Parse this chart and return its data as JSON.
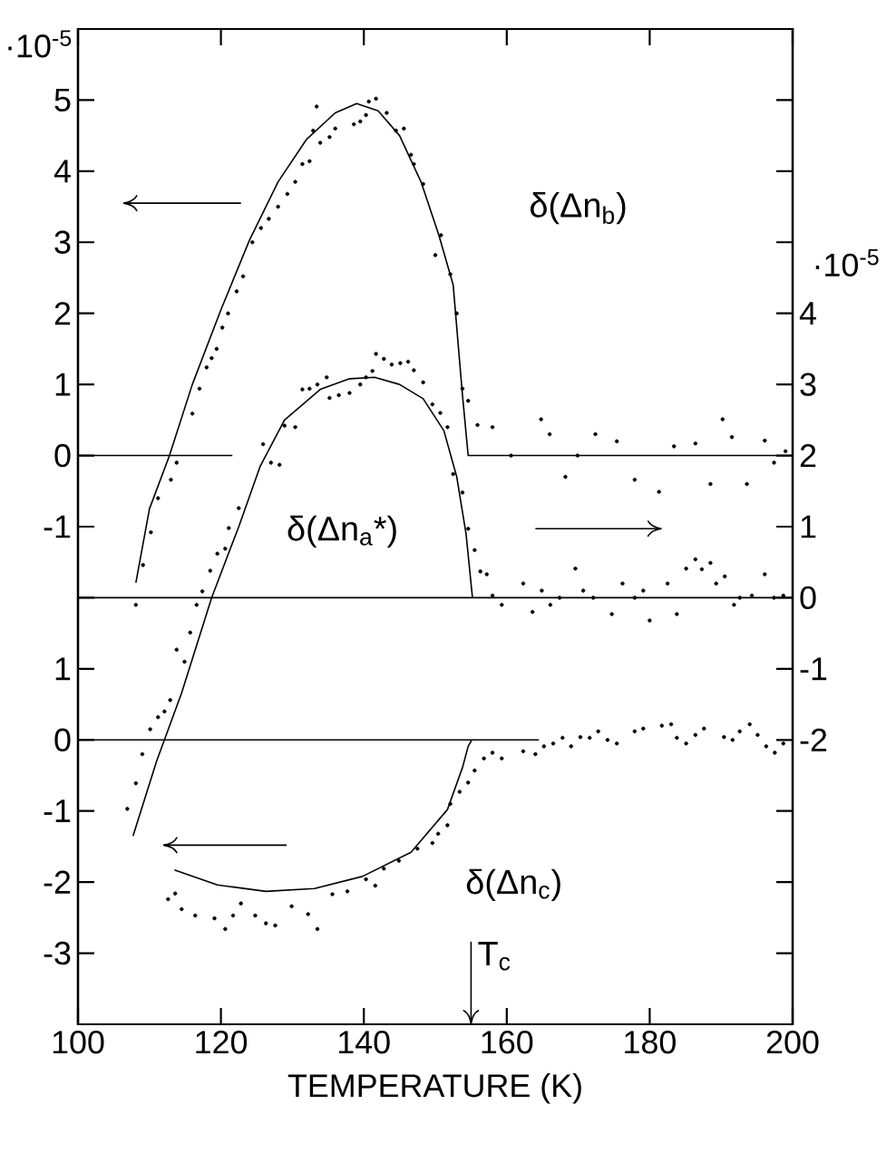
{
  "chart_data": [
    {
      "type": "line",
      "xlim": [
        100,
        200
      ],
      "ylim": [
        -8,
        6
      ],
      "yticks": [
        5,
        4,
        3,
        2,
        1,
        0,
        -1
      ],
      "ylabel": "·10$^{-5}$",
      "tick_labels": "y",
      "annotations": [
        "δ(Δn$_{b}$)"
      ],
      "series": [
        {
          "type": "scatter",
          "color": "#000000",
          "x": [
            108.1,
            109.1,
            110.2,
            111.2,
            113.0,
            113.8,
            116.0,
            117.0,
            118.0,
            118.7,
            119.4,
            120.2,
            121.0,
            122.2,
            123.1,
            124.4,
            125.6,
            126.7,
            128.0,
            129.3,
            130.4,
            131.4,
            132.4,
            132.9,
            133.4,
            133.9,
            135.2,
            136.0,
            138.6,
            139.5,
            140.3,
            140.7,
            141.7,
            143.2,
            144.5,
            145.6,
            146.6,
            147.0,
            148.3,
            150.0,
            150.8,
            152.1,
            153.0,
            153.8,
            154.6,
            155.9,
            158.0,
            160.6,
            164.8,
            166.0,
            168.2,
            169.9,
            172.4,
            175.4,
            177.9,
            181.3,
            183.4,
            186.4,
            188.5,
            190.2,
            191.5,
            193.6,
            196.1,
            197.4,
            199.0
          ],
          "values": [
            -2.1,
            -1.54,
            -1.08,
            -0.6,
            -0.34,
            -0.1,
            0.59,
            0.94,
            1.24,
            1.37,
            1.5,
            1.8,
            2.0,
            2.31,
            2.52,
            3.0,
            3.2,
            3.33,
            3.5,
            3.68,
            3.85,
            4.1,
            4.14,
            4.57,
            4.91,
            4.4,
            4.48,
            4.6,
            4.66,
            4.7,
            4.79,
            4.98,
            5.02,
            4.82,
            4.57,
            4.6,
            4.23,
            4.1,
            3.82,
            2.82,
            3.1,
            2.55,
            2.0,
            0.94,
            0.77,
            0.43,
            0.4,
            0,
            0.51,
            0.3,
            -0.3,
            0,
            0.3,
            0.2,
            -0.34,
            -0.51,
            0.13,
            0.17,
            -0.4,
            0.51,
            0.26,
            -0.4,
            0.21,
            -0.1,
            0.06
          ]
        },
        {
          "color": "#000000",
          "x": [
            108.1,
            110,
            112.8,
            116,
            120,
            124,
            128,
            132,
            136,
            139,
            142,
            145,
            148,
            150.5,
            152.5,
            153.8,
            154.6,
            200
          ],
          "values": [
            -1.79,
            -0.75,
            0,
            1.0,
            2.05,
            3.03,
            3.85,
            4.45,
            4.82,
            4.95,
            4.85,
            4.5,
            3.85,
            3.1,
            2.4,
            0.85,
            0,
            0
          ]
        },
        {
          "color": "#000000",
          "x": [
            100,
            121.6
          ],
          "values": [
            0,
            0
          ]
        }
      ]
    },
    {
      "type": "line",
      "xlim": [
        100,
        200
      ],
      "y2lim": [
        -6,
        8
      ],
      "y2ticks": [
        {
          "value": 7,
          "label": null
        },
        {
          "value": 6,
          "label": null
        },
        {
          "value": 5,
          "label": null
        },
        4,
        3,
        2,
        1,
        0,
        -1,
        -2,
        {
          "value": -3,
          "label": null
        },
        {
          "value": -4,
          "label": null
        },
        {
          "value": -5,
          "label": null
        }
      ],
      "y2label": "·10$^{-5}$",
      "tick_labels": "y",
      "annotations": [
        "δ(Δn$_{a}$*)"
      ],
      "series": [
        {
          "type": "scatter",
          "color": "#000000",
          "axis": "y2",
          "x": [
            106.9,
            108.1,
            109.0,
            110.1,
            111.2,
            112.1,
            112.9,
            113.8,
            114.9,
            115.7,
            116.6,
            117.4,
            118.5,
            119.5,
            120.6,
            121.1,
            122.5,
            125.9,
            127.0,
            128.2,
            128.9,
            130.4,
            131.4,
            132.4,
            133.5,
            134.8,
            135.2,
            136.5,
            138.0,
            139.5,
            140.3,
            141.2,
            141.7,
            142.8,
            143.9,
            145.1,
            146.2,
            147.0,
            148.3,
            149.6,
            150.7,
            151.7,
            152.5,
            153.8,
            154.6,
            155.5,
            156.3,
            157.2,
            158.0,
            159.3,
            162.3,
            163.6,
            164.9,
            166.1,
            167.4,
            169.6,
            170.7,
            172.1,
            174.7,
            176.2,
            177.9,
            179.1,
            180.0,
            182.5,
            183.8,
            185.1,
            186.4,
            187.3,
            188.5,
            189.3,
            190.5,
            191.8,
            192.6,
            194.3,
            196.1,
            197.4,
            198.7
          ],
          "values": [
            -2.97,
            -2.61,
            -2.2,
            -1.85,
            -1.68,
            -1.6,
            -1.44,
            -0.73,
            -0.9,
            -0.49,
            -0.1,
            0.09,
            0.38,
            0.62,
            0.69,
            0.98,
            1.26,
            2.16,
            1.9,
            1.87,
            2.42,
            2.4,
            2.93,
            2.94,
            3.0,
            3.1,
            2.81,
            2.85,
            2.88,
            3.0,
            3.1,
            3.19,
            3.43,
            3.36,
            3.28,
            3.3,
            3.32,
            3.2,
            3.03,
            2.72,
            2.6,
            2.4,
            1.74,
            1.48,
            0.97,
            0.67,
            0.37,
            0.33,
            0.03,
            -0.1,
            0.2,
            -0.2,
            0.1,
            -0.1,
            0,
            0.41,
            0.1,
            0,
            -0.23,
            0.2,
            0,
            0.1,
            -0.32,
            0.2,
            -0.23,
            0.41,
            0.54,
            0.4,
            0.49,
            0.2,
            0.3,
            -0.1,
            0,
            0.03,
            0.33,
            0,
            0.03
          ]
        },
        {
          "color": "#000000",
          "axis": "y2",
          "x": [
            107.7,
            111,
            114.5,
            118.7,
            122.5,
            125.5,
            128.9,
            133.9,
            138,
            141.5,
            145,
            148.3,
            151.2,
            153,
            154.3,
            155.2
          ],
          "values": [
            -3.35,
            -2.3,
            -1.34,
            0,
            1.0,
            1.85,
            2.5,
            2.93,
            3.08,
            3.1,
            3.0,
            2.8,
            2.35,
            1.7,
            0.9,
            0
          ]
        },
        {
          "color": "#000000",
          "axis": "y2",
          "x": [
            100,
            200
          ],
          "values": [
            0,
            0
          ]
        }
      ]
    },
    {
      "type": "line",
      "xlim": [
        100,
        200
      ],
      "xticks": [
        100,
        120,
        140,
        160,
        180,
        200
      ],
      "xlabel": "TEMPERATURE (K)",
      "ylim": [
        -4,
        10
      ],
      "yticks": [
        {
          "value": 2,
          "label": null
        },
        1,
        0,
        -1,
        -2,
        -3
      ],
      "annotations": [
        "δ(Δn$_{c}$)",
        "T$_{c}$"
      ],
      "series": [
        {
          "type": "scatter",
          "color": "#000000",
          "x": [
            112.6,
            113.6,
            114.5,
            116.4,
            119.1,
            120.6,
            121.7,
            122.8,
            124.8,
            126.3,
            127.6,
            129.9,
            132.2,
            133.5,
            135.6,
            137.7,
            140.3,
            141.6,
            142.8,
            144.9,
            147.5,
            149.6,
            150.4,
            151.7,
            152.1,
            153.4,
            154.6,
            155.5,
            156.8,
            158.0,
            159.3,
            162.3,
            164.0,
            165.2,
            166.5,
            167.8,
            169.0,
            170.3,
            171.6,
            172.8,
            174.1,
            175.4,
            177.9,
            179.1,
            181.7,
            183.0,
            183.8,
            185.1,
            186.4,
            187.6,
            190.4,
            191.6,
            192.6,
            194.0,
            195.1,
            196.3,
            197.5,
            198.7
          ],
          "values": [
            -2.24,
            -2.16,
            -2.38,
            -2.47,
            -2.51,
            -2.66,
            -2.47,
            -2.3,
            -2.47,
            -2.58,
            -2.61,
            -2.34,
            -2.45,
            -2.66,
            -2.17,
            -2.13,
            -1.96,
            -2.05,
            -1.81,
            -1.7,
            -1.53,
            -1.45,
            -1.32,
            -1.2,
            -0.9,
            -0.73,
            -0.6,
            -0.43,
            -0.26,
            -0.18,
            -0.26,
            -0.16,
            -0.2,
            -0.09,
            -0.05,
            0.03,
            -0.09,
            0.04,
            0.03,
            0.12,
            0,
            -0.05,
            0.12,
            0.16,
            0.2,
            0.22,
            0.03,
            -0.05,
            0.07,
            0.16,
            0.04,
            0,
            0.12,
            0.22,
            0.07,
            -0.09,
            -0.18,
            -0.05
          ]
        },
        {
          "color": "#000000",
          "x": [
            113.5,
            119.5,
            126.3,
            133.1,
            139.8,
            146.6,
            151.7,
            153.8,
            154.6,
            155.1
          ],
          "values": [
            -1.83,
            -2.04,
            -2.13,
            -2.09,
            -1.92,
            -1.58,
            -0.98,
            -0.39,
            -0.09,
            0
          ]
        },
        {
          "color": "#000000",
          "x": [
            100,
            164.5
          ],
          "values": [
            0,
            0
          ]
        }
      ]
    }
  ]
}
